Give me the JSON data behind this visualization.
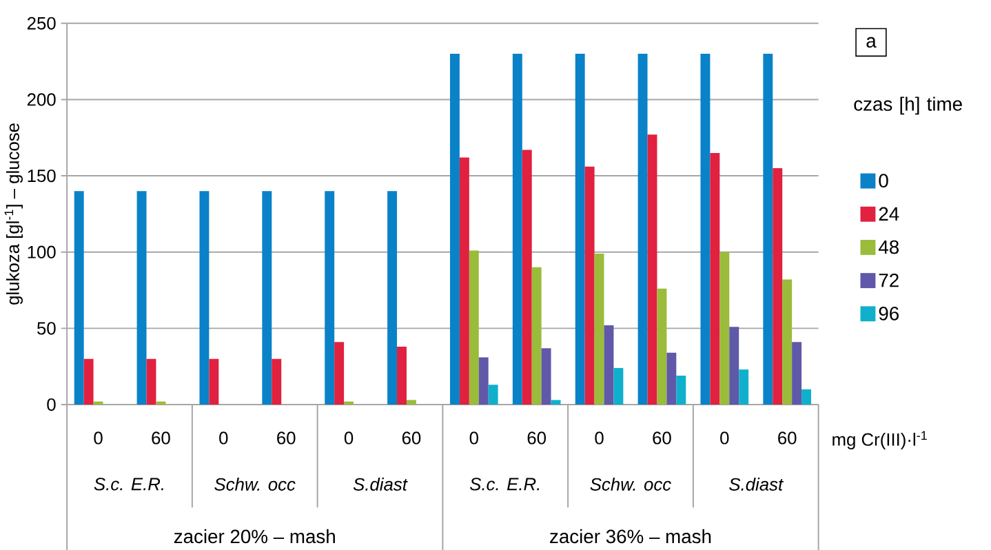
{
  "chart_data": {
    "type": "bar",
    "ylabel": "glukoza [gl$^{-1}$] – glucose",
    "legend_title": "czas [h] time",
    "categories": [
      "0",
      "60",
      "0",
      "60",
      "0",
      "60",
      "0",
      "60",
      "0",
      "60",
      "0",
      "60"
    ],
    "series": [
      {
        "name": "0",
        "color": "#0a82c8",
        "values": [
          140,
          140,
          140,
          140,
          140,
          140,
          230,
          230,
          230,
          230,
          230,
          230
        ]
      },
      {
        "name": "24",
        "color": "#e0213f",
        "values": [
          30,
          30,
          30,
          30,
          41,
          38,
          162,
          167,
          156,
          177,
          165,
          155
        ]
      },
      {
        "name": "48",
        "color": "#9bbb3b",
        "values": [
          2,
          2,
          0,
          0,
          2,
          3,
          101,
          90,
          99,
          76,
          100,
          82
        ]
      },
      {
        "name": "72",
        "color": "#6058a8",
        "values": [
          0,
          0,
          0,
          0,
          0,
          0,
          31,
          37,
          52,
          34,
          51,
          41
        ]
      },
      {
        "name": "96",
        "color": "#10b0cc",
        "values": [
          0,
          0,
          0,
          0,
          0,
          0,
          13,
          3,
          24,
          19,
          23,
          10
        ]
      }
    ],
    "annotations": [
      "S.c. E.R.",
      "Schw. occ",
      "S.diast",
      "S.c. E.R.",
      "Schw. occ",
      "S.diast",
      "zacier 20% – mash",
      "zacier 36% – mash",
      "mg Cr(III)·l$^{-1}$",
      "a"
    ],
    "ylim": [
      0,
      250
    ],
    "yticks": [
      0,
      50,
      100,
      150,
      200,
      250
    ],
    "grid": "y",
    "legend": "right"
  }
}
